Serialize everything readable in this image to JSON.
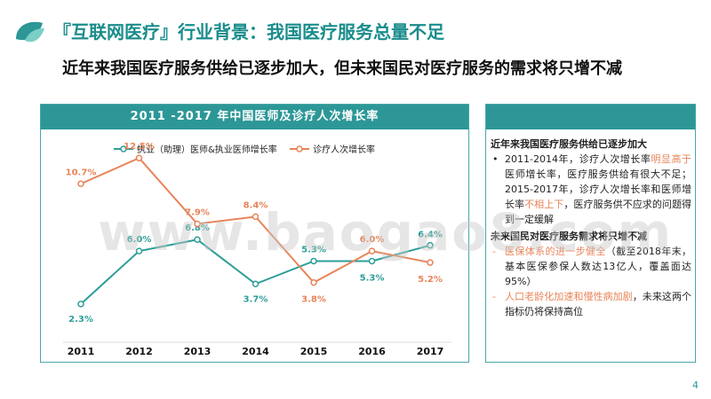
{
  "header": {
    "title": "『互联网医疗』行业背景：我国医疗服务总量不足",
    "subtitle": "近年来我国医疗服务供给已逐步加大，但未来国民对医疗服务的需求将只增不减"
  },
  "chart_data": {
    "type": "line",
    "title": "2011 -2017 年中国医师及诊疗人次增长率",
    "categories": [
      "2011",
      "2012",
      "2013",
      "2014",
      "2015",
      "2016",
      "2017"
    ],
    "series": [
      {
        "name": "执业（助理）医师&执业医师增长率",
        "color": "#2d9e99",
        "values": [
          2.3,
          6.0,
          6.8,
          3.7,
          5.3,
          5.3,
          6.4
        ],
        "labels": [
          "2.3%",
          "6.0%",
          "6.8%",
          "3.7%",
          "5.3%",
          "5.3%",
          "6.4%"
        ]
      },
      {
        "name": "诊疗人次增长率",
        "color": "#e8845a",
        "values": [
          10.7,
          12.5,
          7.9,
          8.4,
          3.8,
          6.0,
          5.2
        ],
        "labels": [
          "10.7%",
          "12.5%",
          "7.9%",
          "8.4%",
          "3.8%",
          "6.0%",
          "5.2%"
        ]
      }
    ],
    "xlabel": "",
    "ylabel": "",
    "ylim": [
      0,
      14
    ],
    "grid": false,
    "legend": "top"
  },
  "side_panel": {
    "section1_title": "近年来我国医疗服务供给已逐步加大",
    "bullet_dot": "•",
    "bullet_dash": "-",
    "item1_a": "2011-2014年，诊疗人次增长率",
    "item1_b": "明显高于",
    "item1_c": "医师增长率，医疗服务供给有很大不足；2015-2017年，诊疗人次增长率和医师增长率",
    "item1_d": "不相上下",
    "item1_e": "，医疗服务供不应求的问题得到一定缓解",
    "section2_title": "未来国民对医疗服务需求将只增不减",
    "item2_a": "医保体系的进一步健全",
    "item2_b": "（截至2018年末，基本医保参保人数达13亿人，覆盖面达95%）",
    "item3_a": "人口老龄化加速和慢性病加剧",
    "item3_b": "，未来这两个指标仍将保持高位"
  },
  "watermark": "www.baogao8.com",
  "page_number": "4",
  "colors": {
    "teal": "#2d9797",
    "orange": "#e8845a",
    "title": "#1a8c8c"
  }
}
